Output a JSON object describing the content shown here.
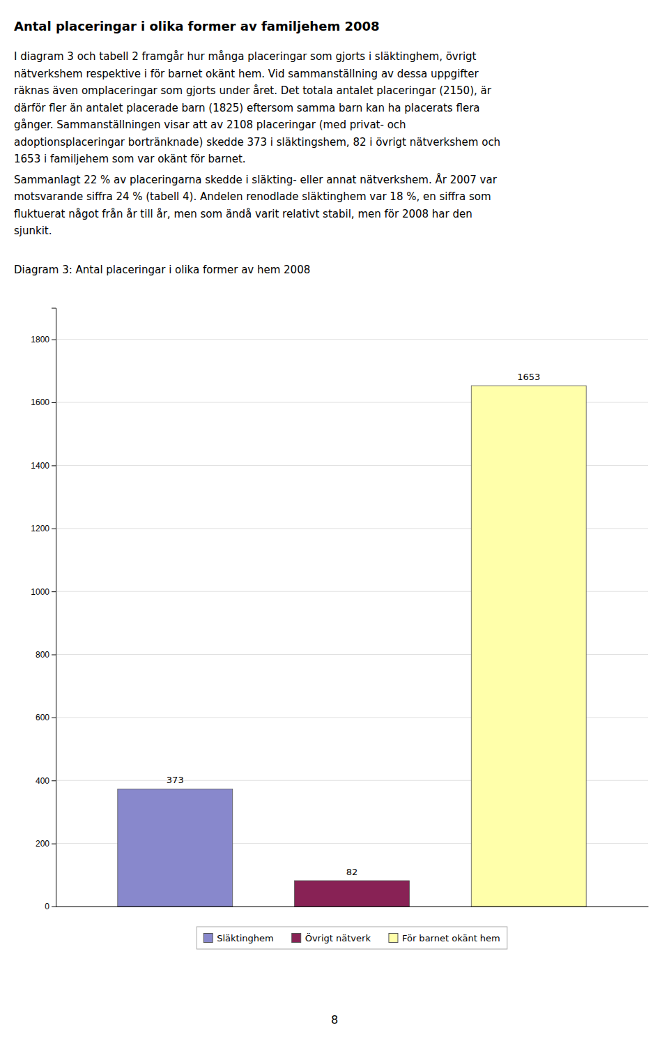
{
  "title": "Antal placeringar i olika former av familjehem 2008",
  "paragraphs": [
    [
      "I diagram 3 och tabell 2 framgår hur många placeringar som gjorts i släktinghem, övrigt",
      "nätverkshem respektive i för barnet okänt hem. Vid sammanställning av dessa uppgifter",
      "räknas även omplaceringar som gjorts under året. Det totala antalet placeringar (2150), är",
      "därför fler än antalet placerade barn (1825) eftersom samma barn kan ha placerats flera",
      "gånger. Sammanställningen visar att av 2108 placeringar (med privat- och",
      "adoptionsplaceringar bortränknade) skedde 373 i släktingshem, 82 i övrigt nätverkshem och",
      "1653 i familjehem som var okänt för barnet."
    ],
    [
      "Sammanlagt 22 % av placeringarna skedde i släkting- eller annat nätverkshem. År 2007 var",
      "motsvarande siffra 24 % (tabell 4). Andelen renodlade släktinghem var 18 %, en siffra som",
      "fluktuerat något från år till år, men som ändå varit relativt stabil, men för 2008 har den",
      "sjunkit."
    ]
  ],
  "page_number": "8",
  "chart_data": {
    "type": "bar",
    "title": "Diagram 3: Antal placeringar i olika former av hem 2008",
    "categories": [
      "Släktinghem",
      "Övrigt nätverk",
      "För barnet okänt hem"
    ],
    "values": [
      373,
      82,
      1653
    ],
    "colors": [
      "#8888cc",
      "#882255",
      "#ffffaa"
    ],
    "ylim": [
      0,
      1900
    ],
    "yticks": [
      0,
      200,
      400,
      600,
      800,
      1000,
      1200,
      1400,
      1600,
      1800
    ],
    "grid": true,
    "legend": "bottom",
    "data_labels": true,
    "tick_labels": "y"
  }
}
